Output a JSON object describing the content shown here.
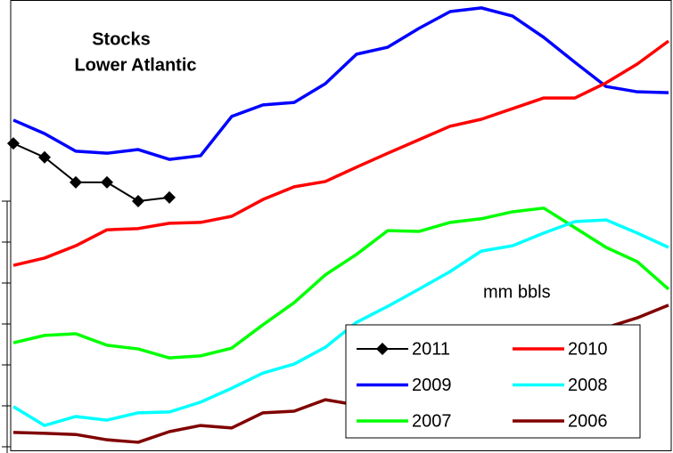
{
  "chart_data": {
    "type": "line",
    "title": "Stocks",
    "subtitle": "Lower Atlantic",
    "annotation": "mm bbls",
    "categories": [
      null,
      null,
      null,
      null,
      null,
      null,
      null,
      null,
      null,
      null,
      null,
      null,
      null,
      null,
      null,
      null,
      null,
      null,
      null,
      null,
      null,
      null
    ],
    "ylim": [
      -0.1,
      10.9
    ],
    "yticks": [
      0,
      1,
      2,
      3,
      4,
      5,
      6
    ],
    "series": [
      {
        "name": "2011",
        "color": "#000000",
        "marker": "diamond",
        "values": [
          7.41,
          7.07,
          6.46,
          6.46,
          6.0,
          6.09,
          null,
          null,
          null,
          null,
          null,
          null,
          null,
          null,
          null,
          null,
          null,
          null,
          null,
          null,
          null,
          null
        ]
      },
      {
        "name": "2010",
        "color": "#ff0000",
        "values": [
          4.43,
          4.61,
          4.91,
          5.3,
          5.33,
          5.46,
          5.48,
          5.63,
          6.04,
          6.35,
          6.48,
          6.83,
          7.17,
          7.5,
          7.83,
          8.0,
          8.26,
          8.52,
          8.52,
          8.89,
          9.35,
          9.91
        ]
      },
      {
        "name": "2009",
        "color": "#0000ff",
        "values": [
          7.98,
          7.65,
          7.22,
          7.17,
          7.26,
          7.02,
          7.11,
          8.07,
          8.35,
          8.41,
          8.87,
          9.59,
          9.76,
          10.22,
          10.63,
          10.72,
          10.52,
          10.0,
          9.39,
          8.8,
          8.67,
          8.65
        ]
      },
      {
        "name": "2008",
        "color": "#00ffff",
        "values": [
          0.98,
          0.52,
          0.74,
          0.65,
          0.83,
          0.85,
          1.09,
          1.43,
          1.8,
          2.02,
          2.43,
          3.04,
          3.43,
          3.85,
          4.28,
          4.78,
          4.91,
          5.22,
          5.5,
          5.54,
          5.22,
          4.87
        ]
      },
      {
        "name": "2007",
        "color": "#00ff00",
        "values": [
          2.54,
          2.72,
          2.76,
          2.48,
          2.39,
          2.17,
          2.22,
          2.41,
          2.98,
          3.52,
          4.2,
          4.7,
          5.28,
          5.26,
          5.48,
          5.57,
          5.74,
          5.83,
          5.35,
          4.87,
          4.52,
          3.85
        ]
      },
      {
        "name": "2006",
        "color": "#800000",
        "values": [
          0.35,
          0.33,
          0.3,
          0.17,
          0.11,
          0.37,
          0.52,
          0.46,
          0.83,
          0.87,
          1.15,
          1.02,
          1.24,
          1.39,
          1.57,
          1.78,
          2.0,
          2.26,
          2.54,
          2.91,
          3.15,
          3.46
        ]
      }
    ]
  }
}
